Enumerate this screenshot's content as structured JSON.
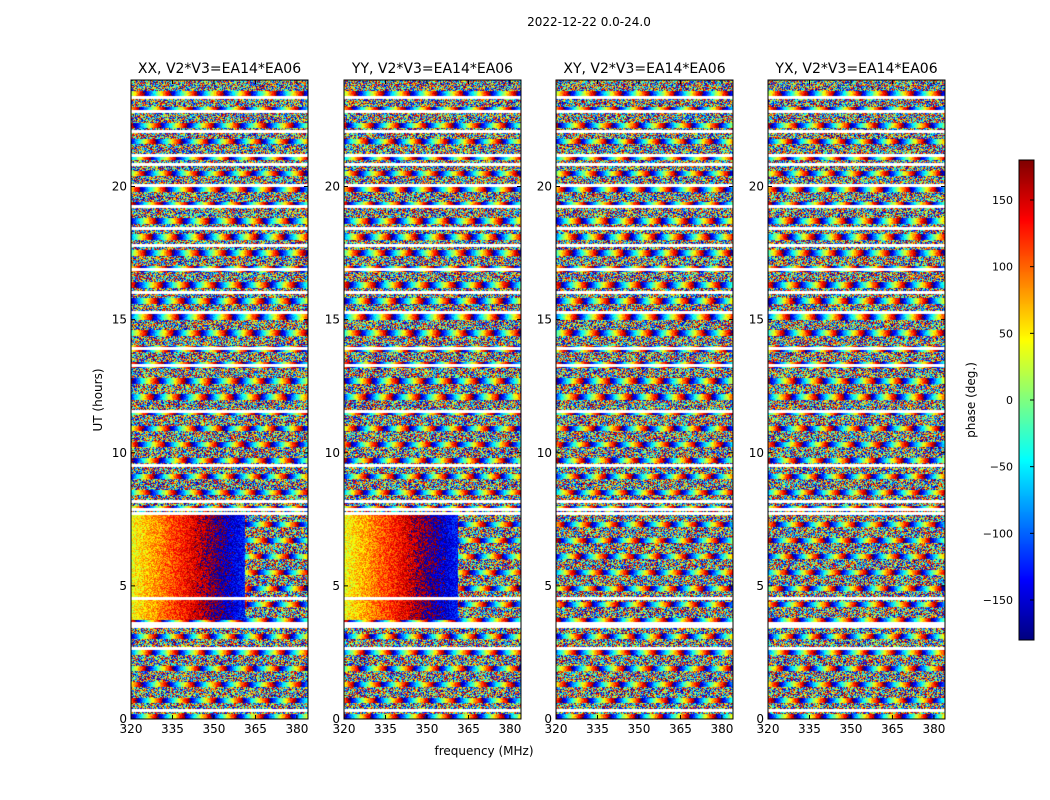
{
  "figure": {
    "suptitle": "2022-12-22 0.0-24.0",
    "xlabel": "frequency (MHz)",
    "ylabel": "UT (hours)",
    "colorbar_label": "phase (deg.)"
  },
  "chart_data": [
    {
      "type": "heatmap",
      "title": "XX, V2*V3=EA14*EA06",
      "xlim": [
        320,
        384
      ],
      "ylim": [
        0,
        24
      ],
      "x_ticks": [
        "320",
        "335",
        "350",
        "365",
        "380"
      ],
      "y_ticks": [
        "0",
        "5",
        "10",
        "15",
        "20"
      ],
      "colormap": "jet",
      "value": "visibility phase (deg.)"
    },
    {
      "type": "heatmap",
      "title": "YY, V2*V3=EA14*EA06",
      "xlim": [
        320,
        384
      ],
      "ylim": [
        0,
        24
      ],
      "x_ticks": [
        "320",
        "335",
        "350",
        "365",
        "380"
      ],
      "y_ticks": [
        "0",
        "5",
        "10",
        "15",
        "20"
      ],
      "colormap": "jet",
      "value": "visibility phase (deg.)"
    },
    {
      "type": "heatmap",
      "title": "XY, V2*V3=EA14*EA06",
      "xlim": [
        320,
        384
      ],
      "ylim": [
        0,
        24
      ],
      "x_ticks": [
        "320",
        "335",
        "350",
        "365",
        "380"
      ],
      "y_ticks": [
        "0",
        "5",
        "10",
        "15",
        "20"
      ],
      "colormap": "jet",
      "value": "visibility phase (deg.)"
    },
    {
      "type": "heatmap",
      "title": "YX, V2*V3=EA14*EA06",
      "xlim": [
        320,
        384
      ],
      "ylim": [
        0,
        24
      ],
      "x_ticks": [
        "320",
        "335",
        "350",
        "365",
        "380"
      ],
      "y_ticks": [
        "0",
        "5",
        "10",
        "15",
        "20"
      ],
      "colormap": "jet",
      "value": "visibility phase (deg.)"
    }
  ],
  "colorbar": {
    "range": [
      -180,
      180
    ],
    "ticks": [
      "150",
      "100",
      "50",
      "0",
      "−50",
      "−100",
      "−150"
    ],
    "colormap": "jet"
  },
  "flagged_ut_hours": [
    0.35,
    2.65,
    3.5,
    3.62,
    4.55,
    7.75,
    7.9,
    8.2,
    9.55,
    11.55,
    13.3,
    13.95,
    15.3,
    16.05,
    16.9,
    17.8,
    18.45,
    19.25,
    20.05,
    20.85,
    21.2,
    22.1,
    22.85,
    23.35
  ]
}
